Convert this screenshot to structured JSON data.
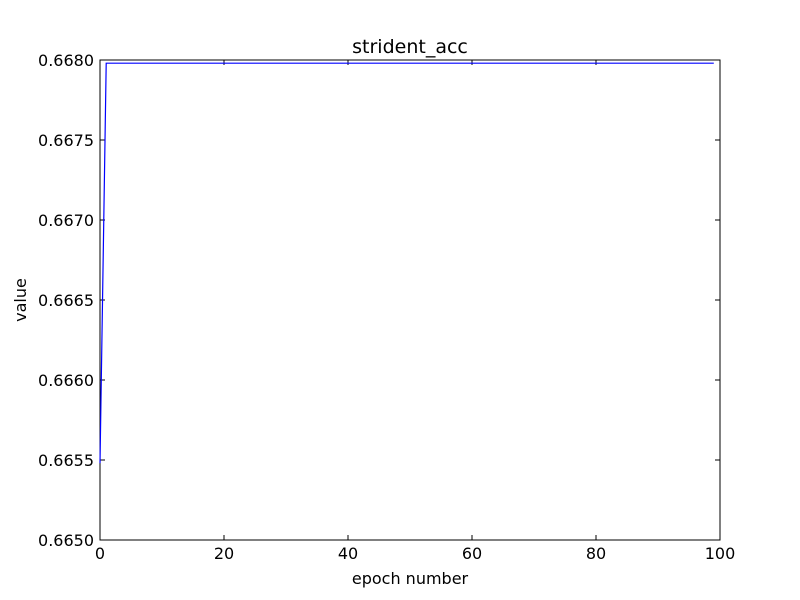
{
  "chart_data": {
    "type": "line",
    "title": "strident_acc",
    "xlabel": "epoch number",
    "ylabel": "value",
    "xlim": [
      0,
      100
    ],
    "ylim": [
      0.665,
      0.668
    ],
    "x_ticks": [
      0,
      20,
      40,
      60,
      80,
      100
    ],
    "y_ticks": [
      0.665,
      0.6655,
      0.666,
      0.6665,
      0.667,
      0.6675,
      0.668
    ],
    "x_tick_labels": [
      "0",
      "20",
      "40",
      "60",
      "80",
      "100"
    ],
    "y_tick_labels": [
      "0.6650",
      "0.6655",
      "0.6660",
      "0.6665",
      "0.6670",
      "0.6675",
      "0.6680"
    ],
    "grid": false,
    "series": [
      {
        "color": "#0000ff",
        "x_start": 0,
        "x_end": 99,
        "x_step": 1,
        "values_head": [
          0.66548,
          0.66798
        ],
        "plateau_value": 0.66798
      }
    ]
  }
}
